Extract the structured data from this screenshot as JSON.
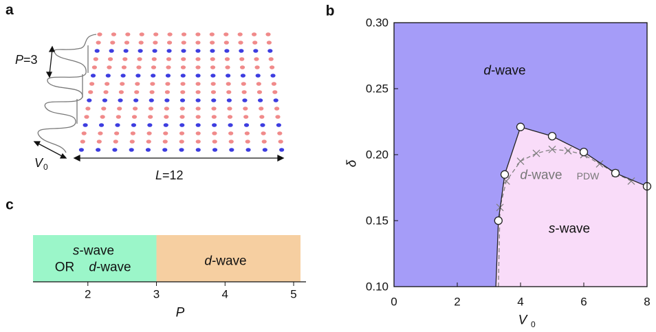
{
  "schematic": {
    "panel": "a",
    "period_label": "P=3",
    "potential_label": "V",
    "potential_label_sub": "0",
    "length_label": "L=12"
  },
  "chart_data": [
    {
      "type": "phase",
      "panel": "b",
      "x_label": "V",
      "x_label_sub": "0",
      "y_label": "δ",
      "xlim": [
        0,
        8
      ],
      "ylim": [
        0.1,
        0.3
      ],
      "xticks": [
        0,
        2,
        4,
        6,
        8
      ],
      "yticks": [
        {
          "value": 0.1,
          "label": "0.10"
        },
        0.15,
        {
          "value": 0.2,
          "label": "0.20"
        },
        0.25,
        {
          "value": 0.3,
          "label": "0.30"
        }
      ],
      "colors": {
        "outer": "#a59cf8",
        "inner": "#f9dcf9"
      },
      "region_labels": [
        "d-wave",
        "s-wave"
      ],
      "pdw_label": [
        "d-wave",
        "PDW"
      ],
      "series": [
        {
          "marker": "circle",
          "color": "#222222",
          "foot_x": 3.22,
          "x": [
            3.3,
            3.5,
            4,
            5,
            6,
            7,
            8
          ],
          "values": [
            0.15,
            0.185,
            0.221,
            0.214,
            0.202,
            0.186,
            0.176
          ]
        },
        {
          "marker": "cross",
          "color": "#808080",
          "foot_x": 3.3,
          "x": [
            3.35,
            3.55,
            4.0,
            4.5,
            5.0,
            5.5,
            6.0,
            6.5,
            7.0,
            7.5
          ],
          "values": [
            0.16,
            0.18,
            0.195,
            0.201,
            0.204,
            0.203,
            0.2,
            0.193,
            0.186,
            0.18
          ]
        }
      ]
    },
    {
      "type": "number_line",
      "panel": "c",
      "x_label": "P",
      "xlim": [
        1.2,
        5.1
      ],
      "xticks": [
        2,
        3,
        4,
        5
      ],
      "regions": [
        {
          "labels": [
            "s-wave",
            "OR",
            "d-wave"
          ],
          "range": [
            1.2,
            3
          ],
          "color": "#9bf6c9"
        },
        {
          "labels": [
            "d-wave"
          ],
          "range": [
            3,
            5.1
          ],
          "color": "#f6cfa1"
        }
      ]
    }
  ]
}
